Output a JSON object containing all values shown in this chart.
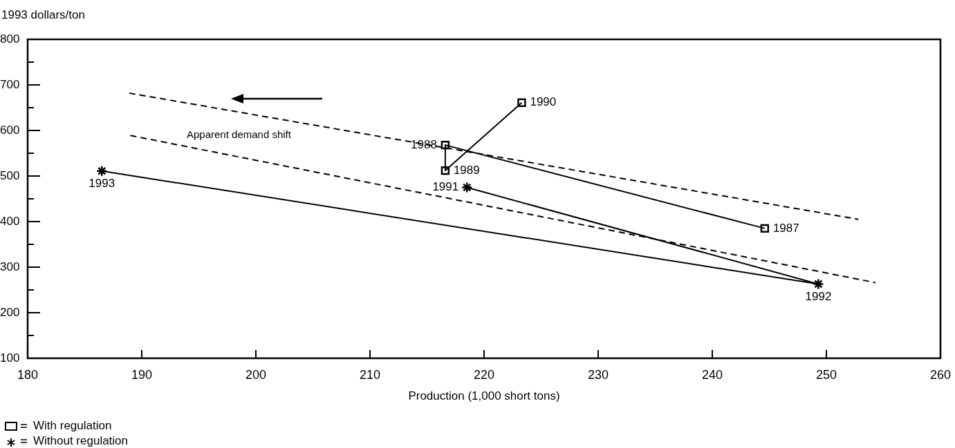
{
  "chart_data": {
    "type": "line",
    "ylabel": "1993 dollars/ton",
    "xlabel": "Production (1,000 short tons)",
    "annotations": [
      "Apparent demand shift",
      {
        "text": "1987",
        "x": 244.6,
        "y": 385
      },
      {
        "text": "1988",
        "x": 216.6,
        "y": 568
      },
      {
        "text": "1989",
        "x": 216.6,
        "y": 512
      },
      {
        "text": "1990",
        "x": 223.3,
        "y": 661
      },
      {
        "text": "1991",
        "x": 218.5,
        "y": 475
      },
      {
        "text": "1992",
        "x": 249.3,
        "y": 263
      },
      {
        "text": "1993",
        "x": 186.5,
        "y": 511
      }
    ],
    "xlim": [
      180,
      260
    ],
    "xticks": [
      180,
      190,
      200,
      210,
      220,
      230,
      240,
      250,
      260
    ],
    "ylim": [
      100,
      800
    ],
    "yticks": [
      100,
      {
        "value": 150,
        "label": null
      },
      200,
      {
        "value": 250,
        "label": null
      },
      300,
      {
        "value": 350,
        "label": null
      },
      400,
      {
        "value": 450,
        "label": null
      },
      500,
      {
        "value": 550,
        "label": null
      },
      600,
      {
        "value": 650,
        "label": null
      },
      700,
      {
        "value": 750,
        "label": null
      },
      800
    ],
    "grid": false,
    "legend": "bottom left",
    "series": [
      {
        "name": "With regulation",
        "color": "#000000",
        "marker": "square",
        "line_style": "solid",
        "x": [
          244.6,
          216.6,
          216.6,
          223.3
        ],
        "values": [
          385,
          568,
          512,
          661
        ]
      },
      {
        "name": "Without regulation",
        "color": "#000000",
        "marker": "cross",
        "line_style": "solid",
        "x": [
          218.5,
          249.3,
          186.5
        ],
        "values": [
          475,
          263,
          511
        ]
      },
      {
        "color": "#000000",
        "marker": "none",
        "line_style": "dashed",
        "x": [
          188.9,
          252.8
        ],
        "values": [
          682,
          405
        ]
      },
      {
        "color": "#000000",
        "marker": "none",
        "line_style": "dashed",
        "x": [
          189,
          254.3
        ],
        "values": [
          589,
          266
        ]
      }
    ]
  }
}
